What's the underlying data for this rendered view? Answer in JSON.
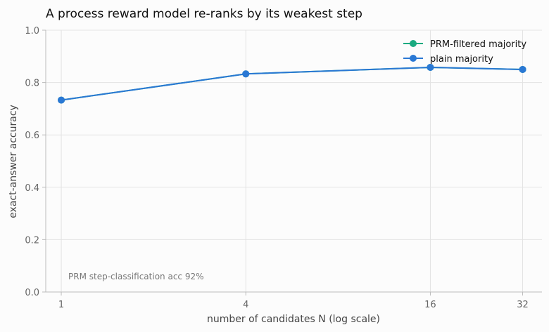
{
  "chart_data": {
    "type": "line",
    "title": "A process reward model re-ranks by its weakest step",
    "xlabel": "number of candidates N (log scale)",
    "ylabel": "exact-answer accuracy",
    "x_scale": "log",
    "x": [
      1,
      4,
      16,
      32
    ],
    "x_ticks": [
      "1",
      "4",
      "16",
      "32"
    ],
    "xlim": [
      0.89,
      37
    ],
    "ylim": [
      0.0,
      1.0
    ],
    "y_ticks": [
      "0.0",
      "0.2",
      "0.4",
      "0.6",
      "0.8",
      "1.0"
    ],
    "grid": true,
    "legend_position": "top-right",
    "series": [
      {
        "name": "PRM-filtered majority",
        "color": "#1aaa80",
        "values": [
          0.733,
          0.833,
          0.858,
          0.85
        ]
      },
      {
        "name": "plain majority",
        "color": "#2a78d4",
        "values": [
          0.733,
          0.833,
          0.858,
          0.85
        ]
      }
    ],
    "annotation": "PRM step-classification acc 92%"
  }
}
